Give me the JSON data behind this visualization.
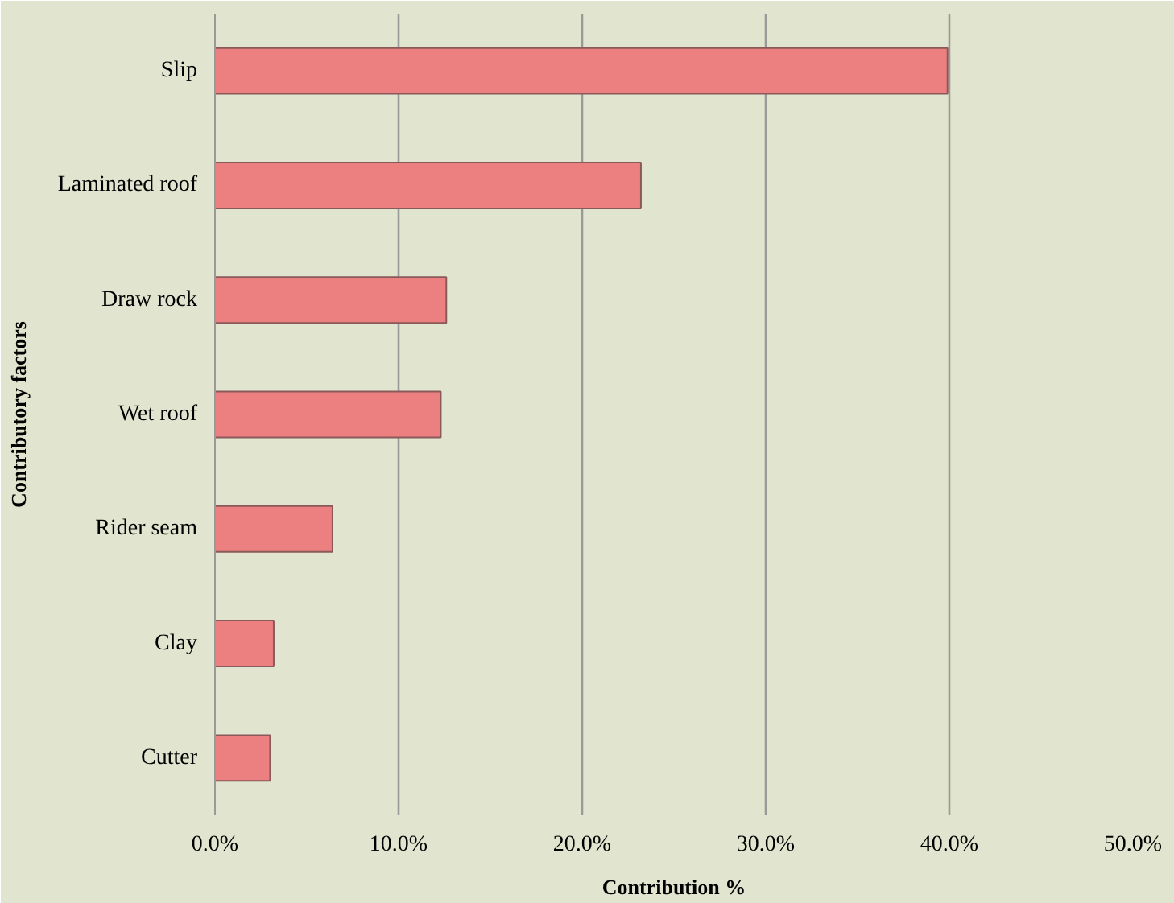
{
  "chart_data": {
    "type": "bar",
    "orientation": "horizontal",
    "xlabel": "Contribution %",
    "ylabel": "Contributory factors",
    "categories": [
      "Slip",
      "Laminated roof",
      "Draw rock",
      "Wet roof",
      "Rider seam",
      "Clay",
      "Cutter"
    ],
    "values": [
      39.9,
      23.2,
      12.6,
      12.3,
      6.4,
      3.2,
      3.0
    ],
    "color": "#ec7f7f",
    "xlim": [
      0,
      50
    ],
    "xticks": [
      {
        "value": 0,
        "label": "0.0%"
      },
      {
        "value": 10,
        "label": "10.0%"
      },
      {
        "value": 20,
        "label": "20.0%"
      },
      {
        "value": 30,
        "label": "30.0%"
      },
      {
        "value": 40,
        "label": "40.0%"
      },
      {
        "value": 50,
        "label": "50.0%"
      }
    ],
    "grid": "x"
  }
}
